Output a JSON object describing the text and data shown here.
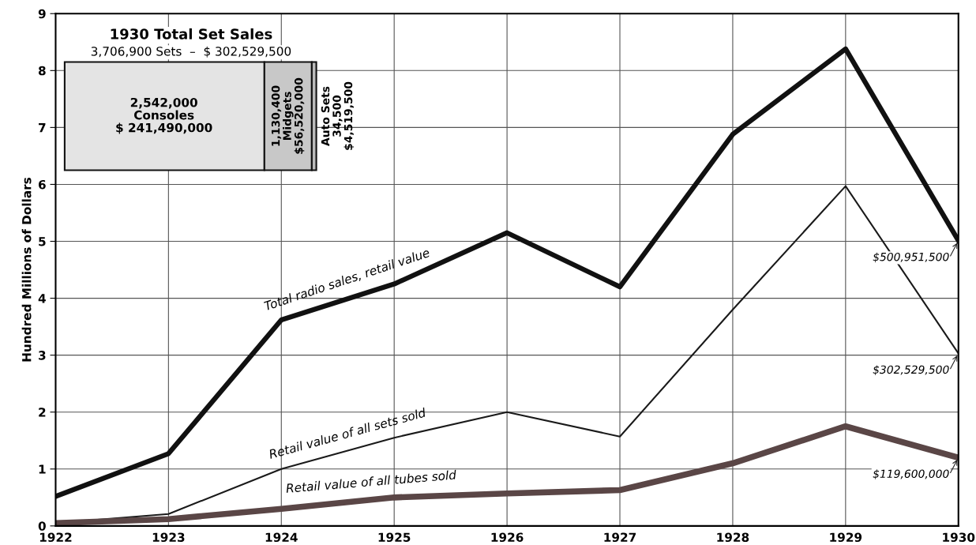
{
  "chart_data": {
    "type": "line",
    "ylabel": "Hundred Millions of Dollars",
    "x": [
      1922,
      1923,
      1924,
      1925,
      1926,
      1927,
      1928,
      1929,
      1930
    ],
    "series": [
      {
        "name": "Total radio sales, retail value",
        "color": "#111111",
        "values": [
          0.52,
          1.27,
          3.62,
          4.25,
          5.15,
          4.2,
          6.88,
          8.38,
          5.01
        ]
      },
      {
        "name": "Retail value of all sets sold",
        "color": "#1a1a1a",
        "values": [
          0.05,
          0.21,
          1.0,
          1.55,
          2.0,
          1.57,
          3.8,
          5.97,
          3.03
        ]
      },
      {
        "name": "Retail value of all tubes sold",
        "color": "#5a4646",
        "values": [
          0.05,
          0.12,
          0.3,
          0.5,
          0.57,
          0.63,
          1.1,
          1.75,
          1.2
        ]
      }
    ],
    "xlim": [
      1922,
      1930
    ],
    "xticks": [
      1922,
      1923,
      1924,
      1925,
      1926,
      1927,
      1928,
      1929,
      1930
    ],
    "ylim": [
      0,
      9
    ],
    "yticks": [
      0,
      1,
      2,
      3,
      4,
      5,
      6,
      7,
      8,
      9
    ],
    "grid": true,
    "legend": false,
    "marker": "none",
    "line_style": "solid",
    "annotations": [
      "$500,951,500",
      "$302,529,500",
      "$119,600,000",
      "1930 Total Set Sales",
      "3,706,900 Sets  –  $ 302,529,500",
      "2,542,000\nConsoles\n$ 241,490,000",
      "1,130,400\nMidgets\n$56,520,000",
      "Auto Sets\n34,500\n$4,519,500"
    ]
  }
}
